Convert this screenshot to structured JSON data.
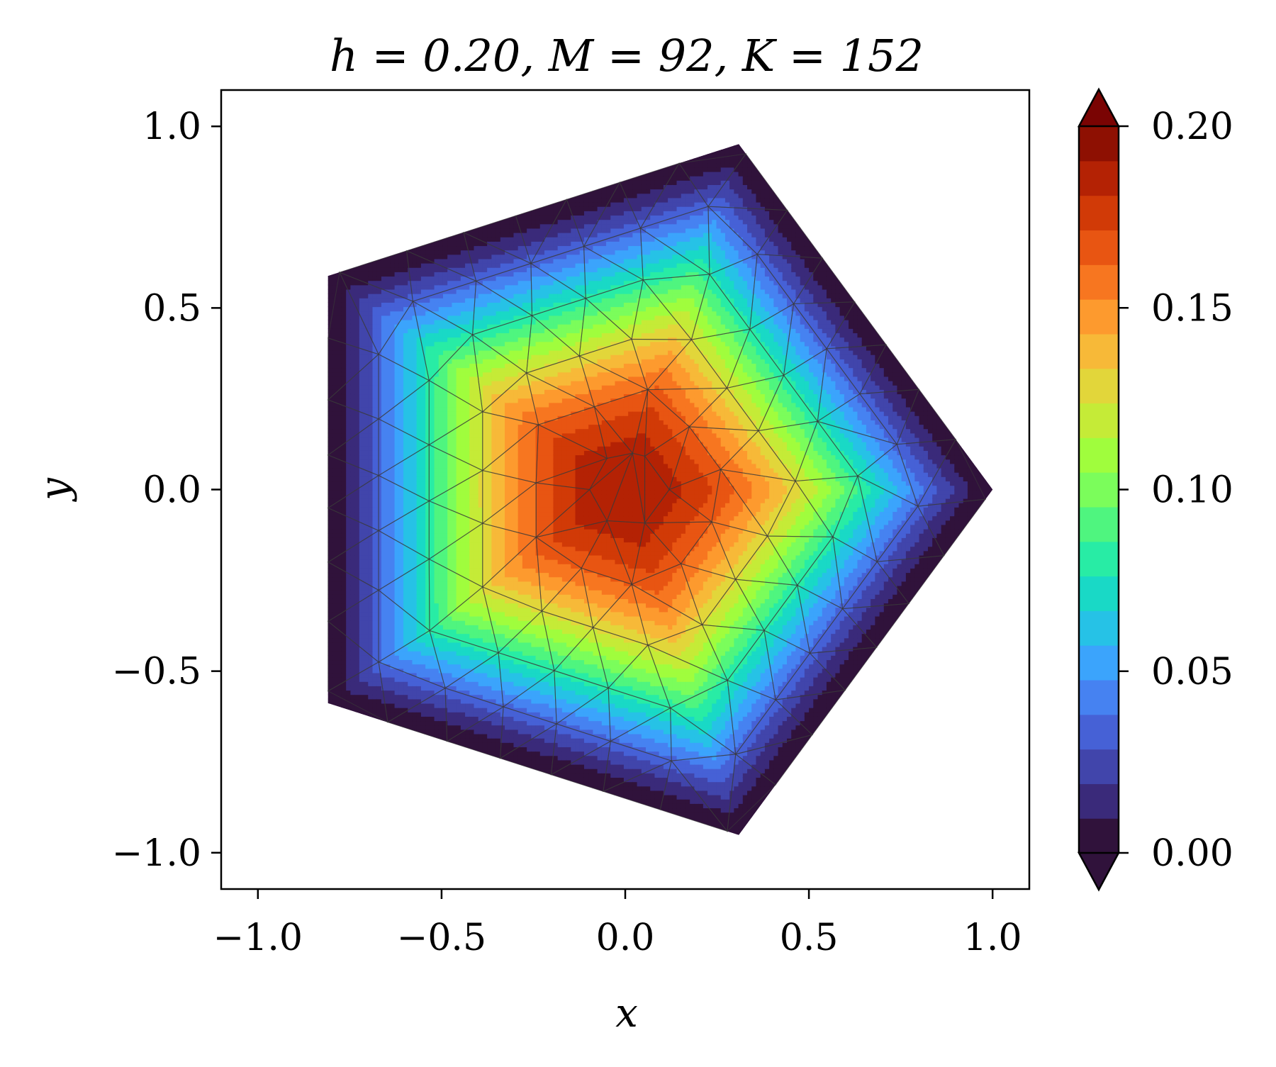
{
  "chart_data": {
    "type": "heatmap",
    "subtype": "filled-contour-on-triangular-mesh",
    "title": "h = 0.20, M = 92, K = 152",
    "xlabel": "x",
    "ylabel": "y",
    "xlim": [
      -1.1,
      1.1
    ],
    "ylim": [
      -1.1,
      1.1
    ],
    "xticks": [
      -1.0,
      -0.5,
      0.0,
      0.5,
      1.0
    ],
    "yticks": [
      -1.0,
      -0.5,
      0.0,
      0.5,
      1.0
    ],
    "xtick_labels": [
      "−1.0",
      "−0.5",
      "0.0",
      "0.5",
      "1.0"
    ],
    "ytick_labels": [
      "−1.0",
      "−0.5",
      "0.0",
      "0.5",
      "1.0"
    ],
    "domain_shape": "regular pentagon",
    "domain_vertices": [
      [
        1.0,
        0.0
      ],
      [
        0.309,
        0.951
      ],
      [
        -0.809,
        0.588
      ],
      [
        -0.809,
        -0.588
      ],
      [
        0.309,
        -0.951
      ]
    ],
    "value_peak": {
      "x": 0.0,
      "y": 0.0,
      "value": 0.19
    },
    "boundary_value": 0.0,
    "colorbar": {
      "min": 0.0,
      "max": 0.2,
      "levels": 19,
      "extend": "both",
      "ticks": [
        0.0,
        0.05,
        0.1,
        0.15,
        0.2
      ],
      "tick_labels": [
        "0.00",
        "0.05",
        "0.10",
        "0.15",
        "0.20"
      ],
      "colormap": "turbo",
      "colors": [
        "#30123b",
        "#3a2a7a",
        "#4145ab",
        "#4661d6",
        "#4682f1",
        "#3ba4fc",
        "#26c2e6",
        "#19d9c6",
        "#28eca5",
        "#4ff57f",
        "#7bfd5b",
        "#a0fd3d",
        "#c5eb37",
        "#e2d63a",
        "#f7b938",
        "#fd9a2e",
        "#f77620",
        "#e85512",
        "#d13a07",
        "#b42204",
        "#8e1002"
      ],
      "under_color": "#30123b",
      "over_color": "#7a0403"
    },
    "mesh": {
      "visible": true,
      "edge_color": "#3a3a3a"
    }
  }
}
